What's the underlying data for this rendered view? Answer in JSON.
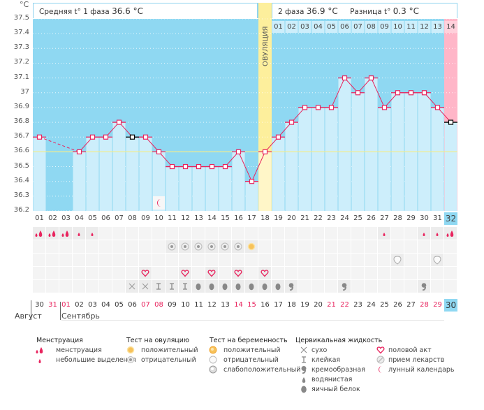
{
  "header": {
    "unit": "°C",
    "phase1_label": "Средняя t° 1 фаза",
    "phase1_value": "36.6 °C",
    "phase2_label": "2 фаза",
    "phase2_value": "36.9 °C",
    "diff_label": "Разница t°",
    "diff_value": "0.3 °C"
  },
  "ovulation_label": "ОВУЛЯЦИЯ",
  "ovulation_day": 18,
  "phase2_days": [
    "01",
    "02",
    "03",
    "04",
    "05",
    "06",
    "07",
    "08",
    "09",
    "10",
    "11",
    "12",
    "13",
    "14"
  ],
  "colors": {
    "sky": "#8fd8f2",
    "bar": "#cdeefb",
    "ovulation": "#fdef9c",
    "pink": "#ffb6c8",
    "line": "#e8245e",
    "coverline": "#f3ec8a",
    "today": "#8fd8f2"
  },
  "chart_data": {
    "type": "line",
    "title": "",
    "xlabel": "",
    "ylabel": "°C",
    "ylim": [
      36.2,
      37.5
    ],
    "yticks": [
      "37.5",
      "37.4",
      "37.3",
      "37.2",
      "37.1",
      "37",
      "36.9",
      "36.8",
      "36.7",
      "36.6",
      "36.5",
      "36.4",
      "36.3",
      "36.2"
    ],
    "coverline": 36.6,
    "categories": [
      "01",
      "02",
      "03",
      "04",
      "05",
      "06",
      "07",
      "08",
      "09",
      "10",
      "11",
      "12",
      "13",
      "14",
      "15",
      "16",
      "17",
      "18",
      "19",
      "20",
      "21",
      "22",
      "23",
      "24",
      "25",
      "26",
      "27",
      "28",
      "29",
      "30",
      "31",
      "32"
    ],
    "series": [
      {
        "name": "Базальная температура",
        "values": [
          36.7,
          null,
          null,
          36.6,
          36.7,
          36.7,
          36.8,
          36.7,
          36.7,
          36.6,
          36.5,
          36.5,
          36.5,
          36.5,
          36.5,
          36.6,
          36.4,
          36.6,
          36.7,
          36.8,
          36.9,
          36.9,
          36.9,
          37.1,
          37.0,
          37.1,
          36.9,
          37.0,
          37.0,
          37.0,
          36.9,
          36.8
        ]
      }
    ],
    "excluded_points": [
      7,
      31
    ],
    "grid": true,
    "legend": "none"
  },
  "rows": {
    "menstruation": {
      "1": "heavy",
      "2": "heavy",
      "3": "heavy",
      "4": "light",
      "5": "light",
      "27": "light",
      "30": "light",
      "31": "light",
      "32": "heavy"
    },
    "ovulation_test": {
      "11": "negative",
      "12": "negative",
      "13": "negative",
      "14": "negative",
      "15": "negative",
      "16": "negative",
      "17": "positive"
    },
    "pregnancy_test": {
      "28": "negative",
      "31": "negative"
    },
    "intercourse": {
      "9": "heart",
      "12": "heart",
      "14": "heart",
      "16": "heart",
      "18": "heart"
    },
    "cervical_fluid": {
      "8": "dry",
      "9": "dry",
      "10": "sticky",
      "11": "sticky",
      "12": "sticky",
      "13": "eggwhite",
      "14": "eggwhite",
      "15": "eggwhite",
      "16": "eggwhite",
      "17": "eggwhite",
      "18": "eggwhite",
      "19": "eggwhite",
      "20": "creamy",
      "24": "creamy",
      "30": "creamy"
    },
    "moon_day": 10
  },
  "dates": [
    {
      "d": "30",
      "red": false
    },
    {
      "d": "31",
      "red": true
    },
    {
      "d": "01",
      "red": true
    },
    {
      "d": "02",
      "red": false
    },
    {
      "d": "03",
      "red": false
    },
    {
      "d": "04",
      "red": false
    },
    {
      "d": "05",
      "red": false
    },
    {
      "d": "06",
      "red": false
    },
    {
      "d": "07",
      "red": true
    },
    {
      "d": "08",
      "red": true
    },
    {
      "d": "09",
      "red": false
    },
    {
      "d": "10",
      "red": false
    },
    {
      "d": "11",
      "red": false
    },
    {
      "d": "12",
      "red": false
    },
    {
      "d": "13",
      "red": false
    },
    {
      "d": "14",
      "red": true
    },
    {
      "d": "15",
      "red": true
    },
    {
      "d": "16",
      "red": false
    },
    {
      "d": "17",
      "red": false
    },
    {
      "d": "18",
      "red": false
    },
    {
      "d": "19",
      "red": false
    },
    {
      "d": "20",
      "red": false
    },
    {
      "d": "21",
      "red": true
    },
    {
      "d": "22",
      "red": true
    },
    {
      "d": "23",
      "red": false
    },
    {
      "d": "24",
      "red": false
    },
    {
      "d": "25",
      "red": false
    },
    {
      "d": "26",
      "red": false
    },
    {
      "d": "27",
      "red": false
    },
    {
      "d": "28",
      "red": true
    },
    {
      "d": "29",
      "red": true
    },
    {
      "d": "30",
      "red": false
    }
  ],
  "months": {
    "first": "Август",
    "second": "Сентябрь"
  },
  "legend": {
    "menstruation": {
      "title": "Менструация",
      "items": [
        "менструация",
        "небольшие выделения"
      ]
    },
    "ovulation_test": {
      "title": "Тест на овуляцию",
      "items": [
        "положительный",
        "отрицательный"
      ]
    },
    "pregnancy_test": {
      "title": "Тест на беременность",
      "items": [
        "положительный",
        "отрицательный",
        "слабоположительный"
      ]
    },
    "cervical_fluid": {
      "title": "Цервикальная жидкость",
      "items": [
        "сухо",
        "клейкая",
        "кремообразная",
        "водянистая",
        "яичный белок"
      ]
    },
    "other": {
      "items": [
        "половой акт",
        "прием лекарств",
        "лунный календарь"
      ]
    }
  }
}
